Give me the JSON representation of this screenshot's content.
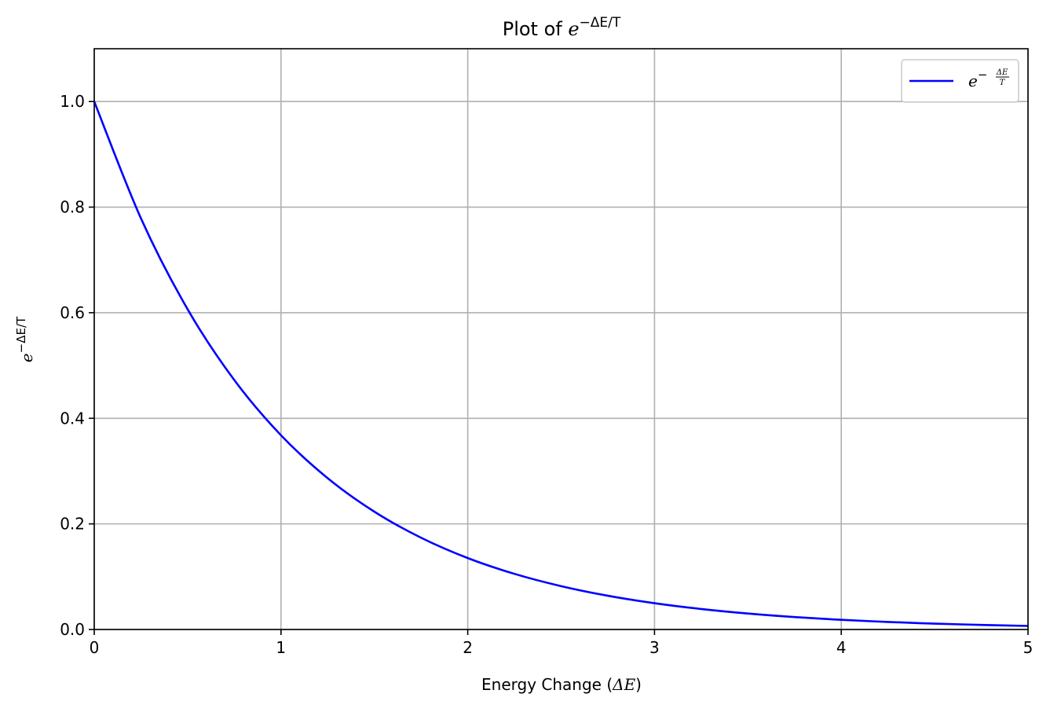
{
  "chart_data": {
    "type": "line",
    "title": {
      "prefix": "Plot of ",
      "base": "e",
      "exponent": "−ΔE/T"
    },
    "xlabel": {
      "prefix": "Energy Change (",
      "symbol": "ΔE",
      "suffix": ")"
    },
    "ylabel": {
      "base": "e",
      "exponent": "−ΔE/T"
    },
    "xlim": [
      0,
      5
    ],
    "ylim": [
      0,
      1.1
    ],
    "x_ticks": [
      0,
      1,
      2,
      3,
      4,
      5
    ],
    "x_tick_labels": [
      "0",
      "1",
      "2",
      "3",
      "4",
      "5"
    ],
    "y_ticks": [
      0.0,
      0.2,
      0.4,
      0.6,
      0.8,
      1.0
    ],
    "y_tick_labels": [
      "0.0",
      "0.2",
      "0.4",
      "0.6",
      "0.8",
      "1.0"
    ],
    "grid": true,
    "legend": {
      "placement": "top-right",
      "entries": [
        {
          "base": "e",
          "exponent_prefix": "−",
          "numerator": "ΔE",
          "denominator": "T"
        }
      ]
    },
    "series": [
      {
        "color": "#0000ff",
        "x": [
          0,
          0.25,
          0.5,
          0.75,
          1.0,
          1.25,
          1.5,
          1.75,
          2.0,
          2.25,
          2.5,
          2.75,
          3.0,
          3.25,
          3.5,
          3.75,
          4.0,
          4.25,
          4.5,
          4.75,
          5.0
        ],
        "y": [
          1.0,
          0.7788,
          0.6065,
          0.4724,
          0.3679,
          0.2865,
          0.2231,
          0.1738,
          0.1353,
          0.1054,
          0.0821,
          0.0639,
          0.0498,
          0.0388,
          0.0302,
          0.0235,
          0.0183,
          0.0143,
          0.0111,
          0.0087,
          0.0067
        ]
      }
    ]
  }
}
